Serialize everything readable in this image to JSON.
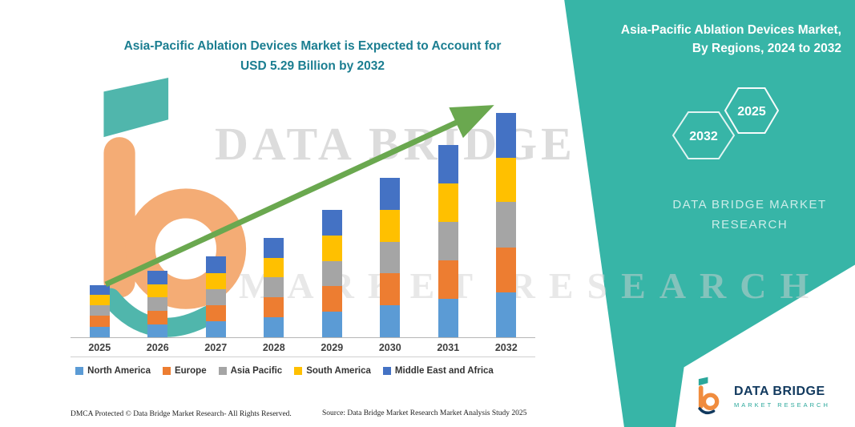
{
  "page": {
    "title_line1": "Asia-Pacific Ablation Devices Market is Expected to Account for",
    "title_line2": "USD 5.29 Billion by 2032"
  },
  "right_panel": {
    "heading_line1": "Asia-Pacific Ablation Devices Market,",
    "heading_line2": "By Regions, 2024 to 2032",
    "hexagon_back_label": "2032",
    "hexagon_front_label": "2025",
    "brand_line1": "DATA BRIDGE MARKET",
    "brand_line2": "RESEARCH"
  },
  "watermarks": {
    "big_text": "DATA BRIDGE",
    "row_text": "MARKET RESEARCH"
  },
  "footer": {
    "dmca": "DMCA Protected © Data Bridge Market Research-  All Rights Reserved.",
    "source": "Source: Data Bridge Market Research  Market Analysis Study 2025"
  },
  "logo": {
    "name": "DATA BRIDGE",
    "tagline": "MARKET RESEARCH"
  },
  "colors": {
    "teal_panel": "#37b5a7",
    "title_text": "#1b7e91",
    "arrow_green": "#6aa84f",
    "axis_line": "#b5b5b5",
    "year_label": "#3f3f3f",
    "legend_text": "#333333"
  },
  "chart_data": {
    "type": "bar",
    "stacked": true,
    "title": "Asia-Pacific Ablation Devices Market is Expected to Account for USD 5.29 Billion by 2032",
    "unit": "USD Billion",
    "categories": [
      "2025",
      "2026",
      "2027",
      "2028",
      "2029",
      "2030",
      "2031",
      "2032"
    ],
    "series": [
      {
        "name": "North America",
        "color": "#5B9BD5",
        "values": [
          0.25,
          0.31,
          0.38,
          0.47,
          0.6,
          0.75,
          0.91,
          1.06
        ]
      },
      {
        "name": "Europe",
        "color": "#ED7D31",
        "values": [
          0.25,
          0.31,
          0.38,
          0.47,
          0.6,
          0.75,
          0.91,
          1.06
        ]
      },
      {
        "name": "Asia Pacific",
        "color": "#A5A5A5",
        "values": [
          0.25,
          0.32,
          0.38,
          0.47,
          0.6,
          0.75,
          0.9,
          1.06
        ]
      },
      {
        "name": "South America",
        "color": "#FFC000",
        "values": [
          0.24,
          0.31,
          0.38,
          0.46,
          0.6,
          0.75,
          0.9,
          1.05
        ]
      },
      {
        "name": "Middle East and Africa",
        "color": "#4472C4",
        "values": [
          0.24,
          0.32,
          0.39,
          0.47,
          0.6,
          0.76,
          0.91,
          1.06
        ]
      }
    ],
    "totals": [
      1.23,
      1.57,
      1.91,
      2.34,
      3.0,
      3.76,
      4.53,
      5.29
    ],
    "ylim": [
      0,
      5.6
    ],
    "grid": false,
    "y_axis_visible": false,
    "legend_position": "bottom",
    "annotations": [
      "upward green trend arrow from 2025 to 2032"
    ]
  }
}
